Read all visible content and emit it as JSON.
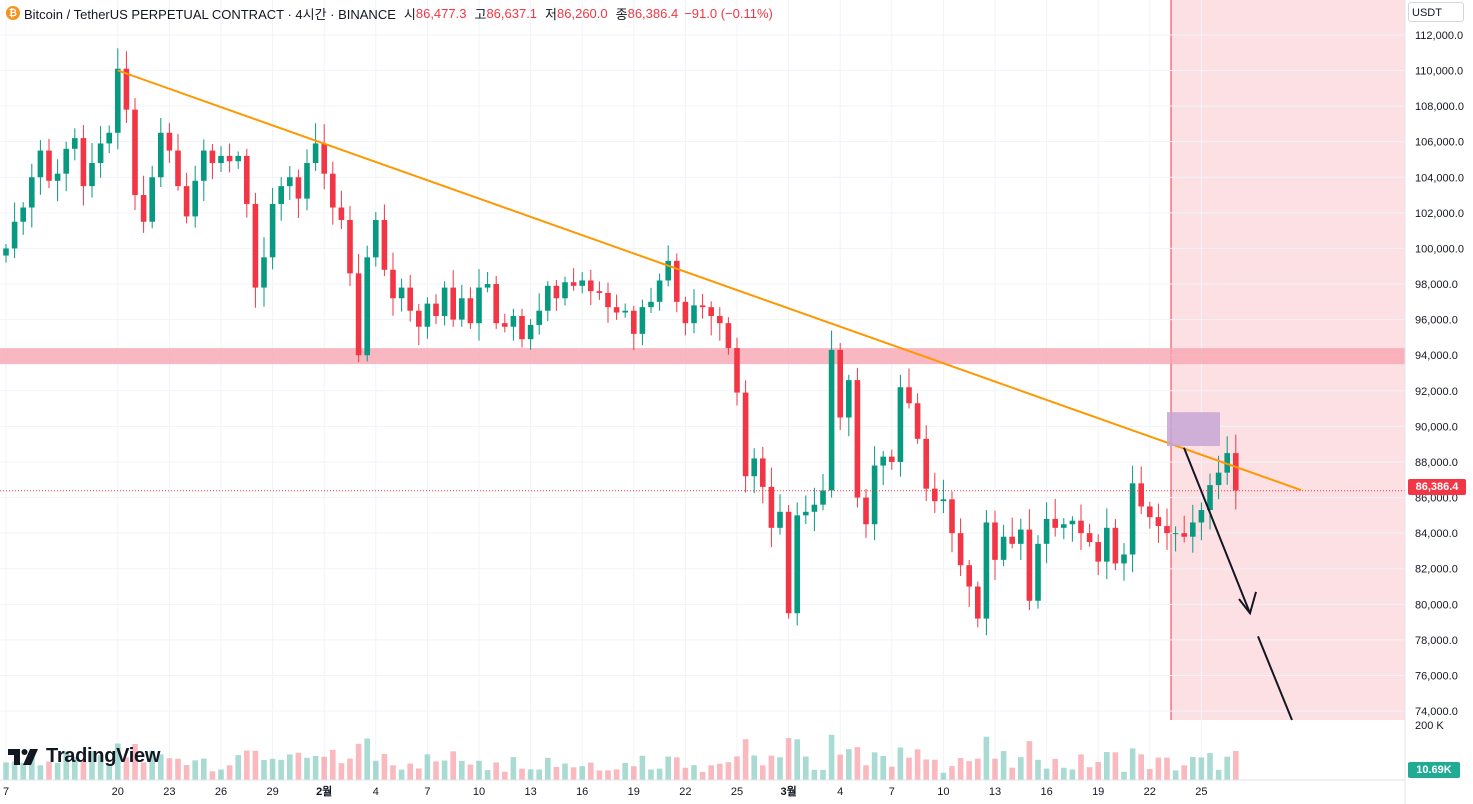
{
  "header": {
    "icon_glyph": "₿",
    "symbol": "Bitcoin / TetherUS PERPETUAL CONTRACT · 4시간 · BINANCE",
    "open_label": "시",
    "open": "86,477.3",
    "high_label": "고",
    "high": "86,637.1",
    "low_label": "저",
    "low": "86,260.0",
    "close_label": "종",
    "close": "86,386.4",
    "change": "−91.0 (−0.11%)"
  },
  "axis_currency": "USDT",
  "last_price_label": "86,386.4",
  "volume_last_label": "10.69K",
  "volume_axis_label": "200 K",
  "branding": "TradingView",
  "icons": [
    "bitcoin-icon",
    "tradingview-logo-icon"
  ],
  "colors": {
    "up": "#089981",
    "down": "#f23645",
    "trendline": "#ff9800",
    "zone": "#f7a6b2",
    "projection": "#fde0e4",
    "marker_box": "#c7a4d6"
  },
  "chart_data": {
    "type": "candlestick",
    "title": "Bitcoin / TetherUS PERPETUAL CONTRACT · 4시간 · BINANCE",
    "timeframe": "4시간",
    "ylim": [
      73500,
      112500
    ],
    "y_ticks": [
      74000,
      76000,
      78000,
      80000,
      82000,
      84000,
      86000,
      88000,
      90000,
      92000,
      94000,
      96000,
      98000,
      100000,
      102000,
      104000,
      106000,
      108000,
      110000,
      112000
    ],
    "y_tick_labels": [
      "74,000.0",
      "76,000.0",
      "78,000.0",
      "80,000.0",
      "82,000.0",
      "84,000.0",
      "86,000.0",
      "88,000.0",
      "90,000.0",
      "92,000.0",
      "94,000.0",
      "96,000.0",
      "98,000.0",
      "100,000.0",
      "102,000.0",
      "104,000.0",
      "106,000.0",
      "108,000.0",
      "110,000.0",
      "112,000.0"
    ],
    "x_tick_labels": [
      "7",
      "20",
      "23",
      "26",
      "29",
      "2월",
      "4",
      "7",
      "10",
      "13",
      "16",
      "19",
      "22",
      "25",
      "3월",
      "4",
      "7",
      "10",
      "13",
      "16",
      "19",
      "22",
      "25"
    ],
    "x_tick_index": [
      0,
      13,
      19,
      25,
      31,
      37,
      43,
      49,
      55,
      61,
      67,
      73,
      79,
      85,
      91,
      97,
      103,
      109,
      115,
      121,
      127,
      133,
      139
    ],
    "trendline": {
      "from": [
        13,
        110000
      ],
      "to": [
        145,
        86500
      ]
    },
    "resistance_zone": [
      93500,
      94400
    ],
    "last_price": 86386.4,
    "closes": [
      100000,
      101500,
      102300,
      104000,
      105500,
      103800,
      104200,
      105600,
      106200,
      103500,
      104800,
      105900,
      106500,
      110100,
      107800,
      103000,
      101500,
      104000,
      106500,
      105500,
      103500,
      101800,
      103800,
      105500,
      104800,
      105200,
      104900,
      105200,
      102500,
      97800,
      99500,
      102500,
      103500,
      104000,
      102800,
      104800,
      105900,
      104200,
      102300,
      101600,
      98600,
      94000,
      99500,
      101600,
      98800,
      97200,
      97800,
      96500,
      95600,
      96900,
      96200,
      97800,
      96000,
      97200,
      95800,
      97800,
      98000,
      95800,
      95600,
      96200,
      94900,
      95700,
      96500,
      97900,
      97200,
      98100,
      97900,
      98200,
      97600,
      97500,
      96700,
      96400,
      96500,
      95200,
      96700,
      97000,
      98200,
      99300,
      97000,
      95800,
      96800,
      96700,
      96200,
      95800,
      94400,
      91900,
      87200,
      88200,
      86600,
      84300,
      85200,
      79500,
      85000,
      85200,
      85600,
      86400,
      94300,
      90500,
      92600,
      86000,
      84500,
      87800,
      88300,
      88000,
      92200,
      91300,
      89300,
      86500,
      85800,
      85900,
      84000,
      82200,
      81000,
      79200,
      84600,
      82500,
      83800,
      83400,
      84200,
      80200,
      83400,
      84800,
      84300,
      84500,
      84700,
      84000,
      83500,
      82400,
      84300,
      82300,
      82800,
      86800,
      85500,
      84900,
      84400,
      84000,
      84000,
      83800,
      84600,
      85300,
      86700,
      87400,
      88500,
      86400
    ],
    "volume_last": "10.69K",
    "annotation": "projected downward move from trendline rejection (arrows)"
  }
}
